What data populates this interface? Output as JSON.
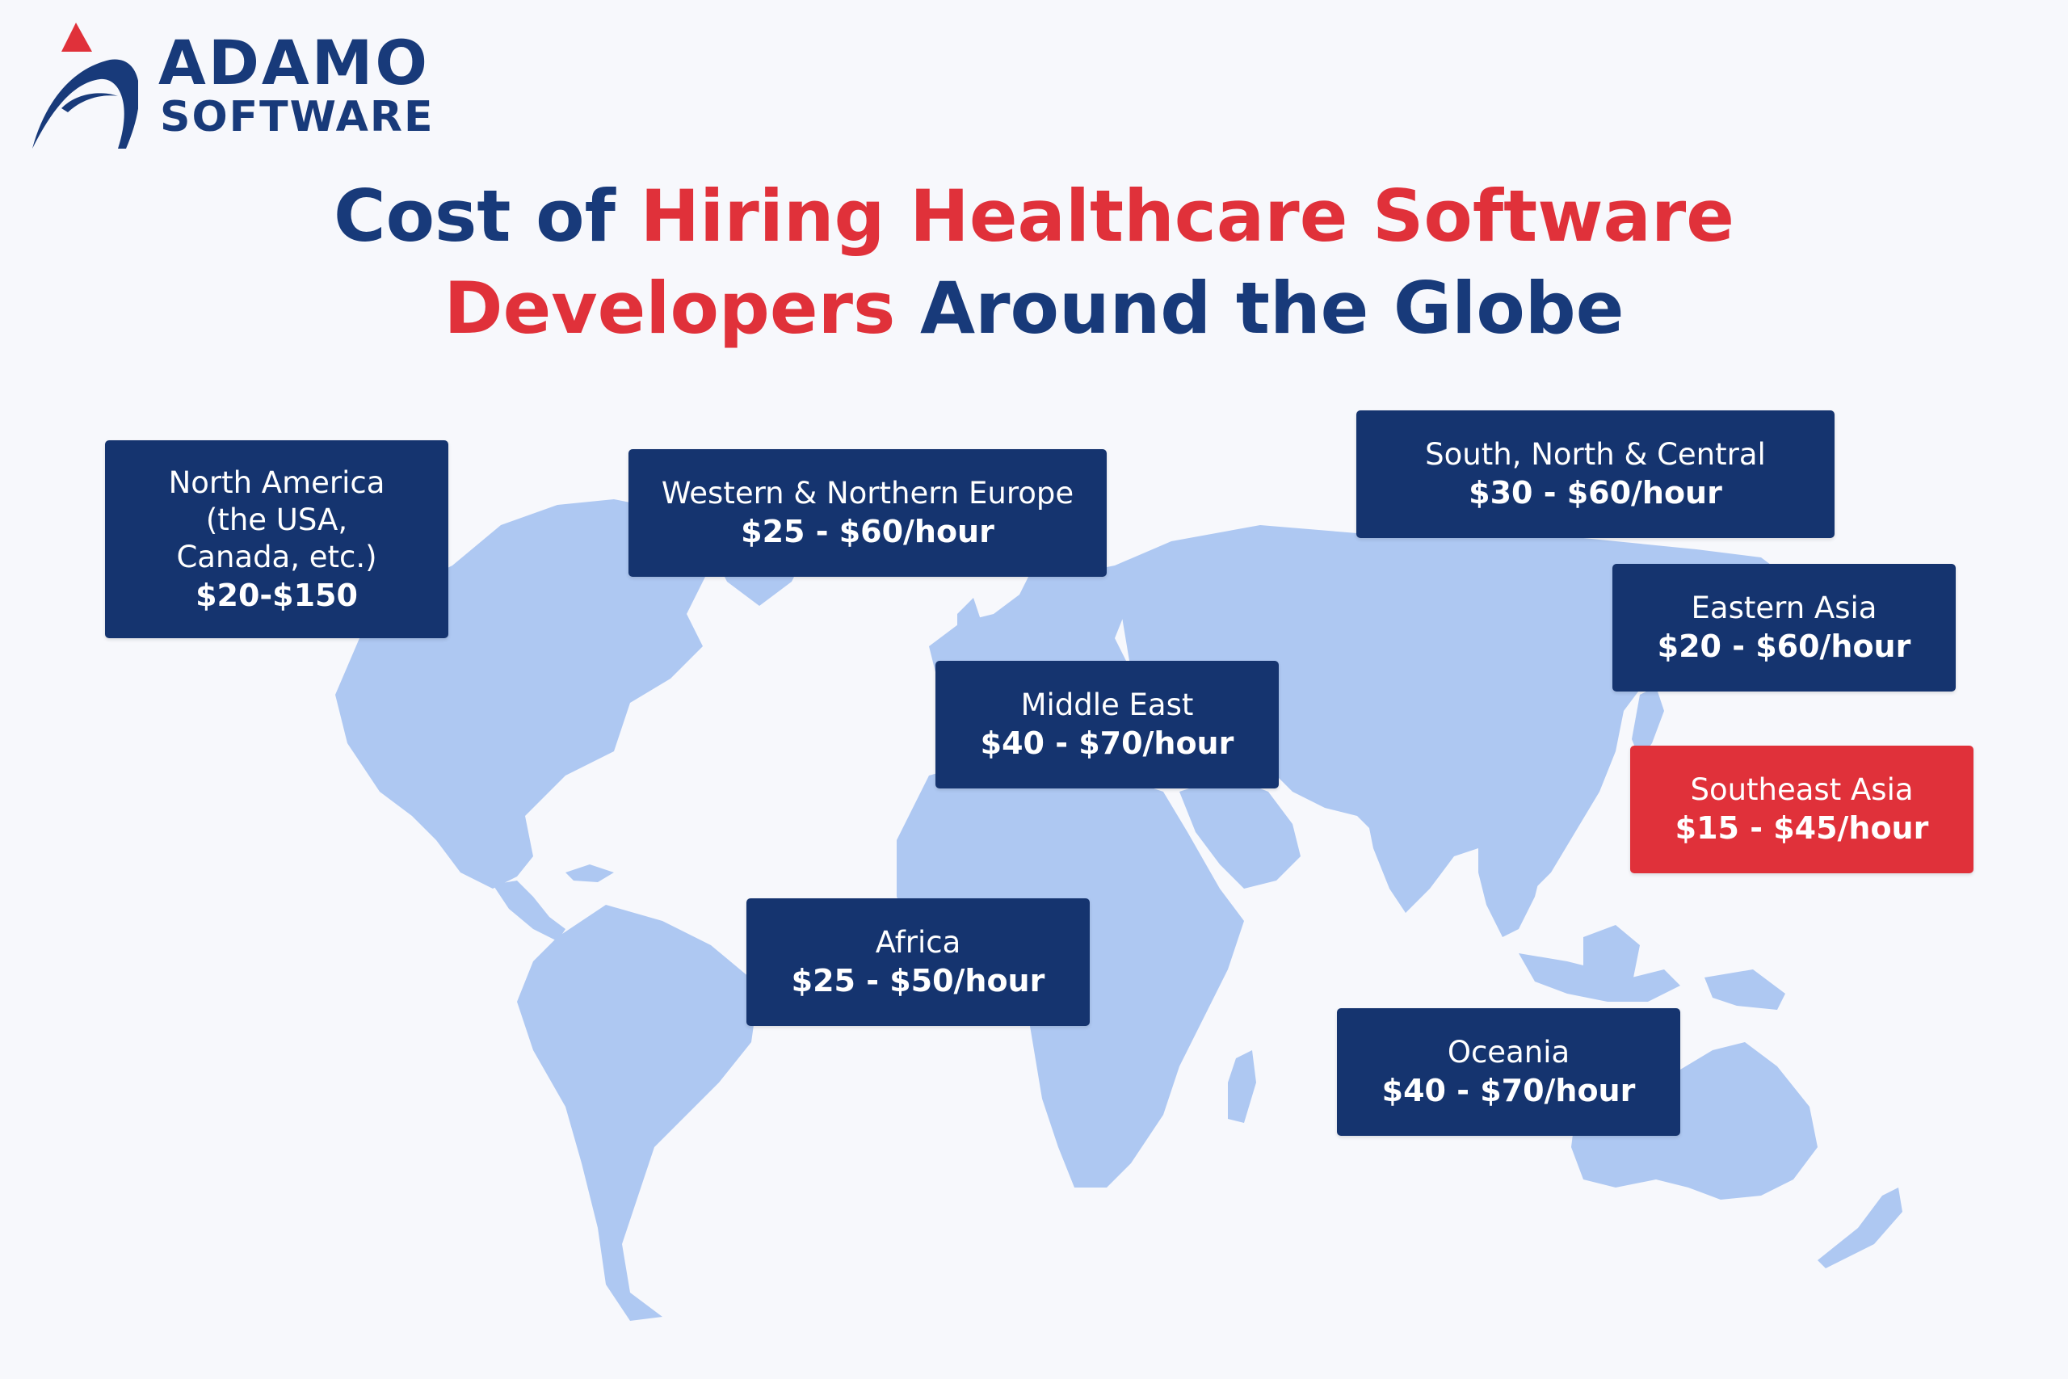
{
  "logo": {
    "name_line1": "ADAMO",
    "name_line2": "SOFTWARE",
    "brand_color": "#183a7a",
    "accent_color": "#e0313a"
  },
  "title": {
    "line1_part1": "Cost of ",
    "line1_part2": "Hiring Healthcare Software",
    "line2_part1": "Developers",
    "line2_part2": " Around the Globe"
  },
  "colors": {
    "background": "#f7f8fc",
    "land": "#aec8f2",
    "box": "#15346f",
    "highlight_box": "#e0313a"
  },
  "regions": {
    "north_america": {
      "name_line1": "North America",
      "name_line2": "(the USA,",
      "name_line3": "Canada, etc.)",
      "price": "$20-$150"
    },
    "europe": {
      "name": "Western & Northern Europe",
      "price": "$25 - $60/hour"
    },
    "central_asia": {
      "name": "South, North & Central",
      "price": "$30 - $60/hour"
    },
    "eastern_asia": {
      "name": "Eastern Asia",
      "price": "$20 - $60/hour"
    },
    "middle_east": {
      "name": "Middle East",
      "price": "$40 - $70/hour"
    },
    "southeast_asia": {
      "name": "Southeast Asia",
      "price": "$15 - $45/hour",
      "highlighted": true
    },
    "africa": {
      "name": "Africa",
      "price": "$25 - $50/hour"
    },
    "oceania": {
      "name": "Oceania",
      "price": "$40 - $70/hour"
    }
  }
}
